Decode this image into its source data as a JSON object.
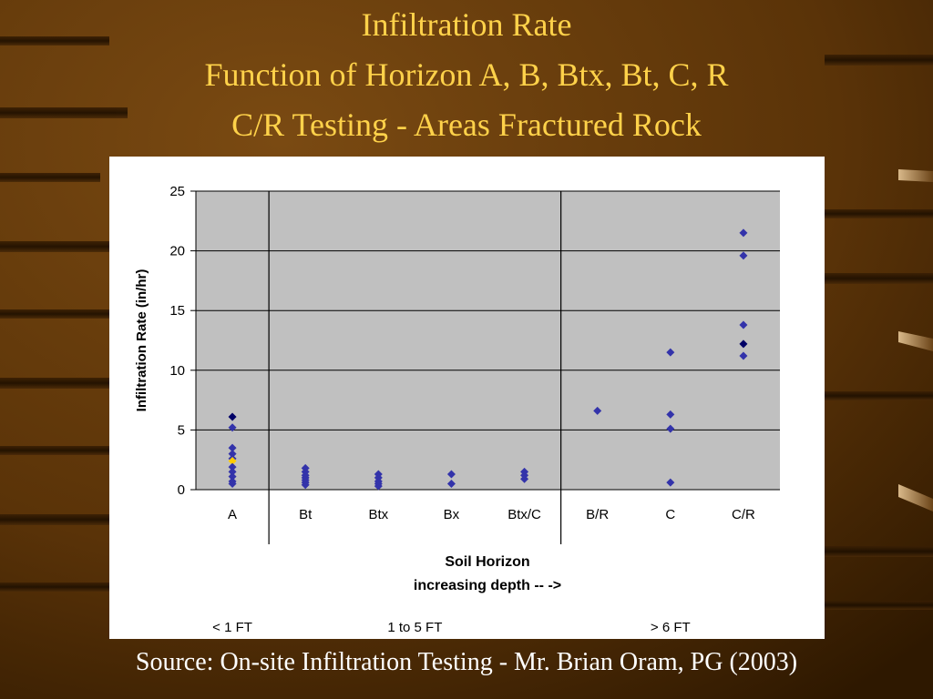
{
  "slide": {
    "title_lines": [
      "Infiltration Rate",
      "Function of Horizon A, B, Btx, Bt, C, R",
      "C/R Testing - Areas Fractured Rock"
    ],
    "source": "Source: On-site Infiltration Testing - Mr. Brian Oram, PG (2003)"
  },
  "colors": {
    "title": "#ffd24a",
    "source": "#ffffff",
    "plot_area": "#c0c0c0",
    "marker": "#3333aa",
    "marker_dark": "#000066",
    "marker_highlight": "#ffcc00"
  },
  "chart_data": {
    "type": "scatter",
    "categories": [
      "A",
      "Bt",
      "Btx",
      "Bx",
      "Btx/C",
      "B/R",
      "C",
      "C/R"
    ],
    "xlabel": "Soil Horizon",
    "xlabel_sub": "increasing depth -- ->",
    "ylabel": "Infiltration Rate (in/hr)",
    "ylim": [
      0,
      25
    ],
    "yticks": [
      "0",
      "5",
      "10",
      "15",
      "20",
      "25"
    ],
    "grid": true,
    "legend": "none",
    "depth_groups": [
      {
        "label": "< 1 FT",
        "from": 0,
        "to": 0
      },
      {
        "label": "1 to 5 FT",
        "from": 1,
        "to": 4
      },
      {
        "label": "> 6 FT",
        "from": 5,
        "to": 7
      }
    ],
    "points": [
      {
        "cat": 0,
        "y": 6.1,
        "style": "dark"
      },
      {
        "cat": 0,
        "y": 5.2
      },
      {
        "cat": 0,
        "y": 3.5
      },
      {
        "cat": 0,
        "y": 3.0
      },
      {
        "cat": 0,
        "y": 2.6
      },
      {
        "cat": 0,
        "y": 2.4,
        "style": "highlight"
      },
      {
        "cat": 0,
        "y": 1.9
      },
      {
        "cat": 0,
        "y": 1.5
      },
      {
        "cat": 0,
        "y": 1.1
      },
      {
        "cat": 0,
        "y": 0.7
      },
      {
        "cat": 0,
        "y": 0.5
      },
      {
        "cat": 1,
        "y": 1.8
      },
      {
        "cat": 1,
        "y": 1.5
      },
      {
        "cat": 1,
        "y": 1.2
      },
      {
        "cat": 1,
        "y": 1.0
      },
      {
        "cat": 1,
        "y": 0.8
      },
      {
        "cat": 1,
        "y": 0.6
      },
      {
        "cat": 1,
        "y": 0.4
      },
      {
        "cat": 2,
        "y": 1.3
      },
      {
        "cat": 2,
        "y": 1.0
      },
      {
        "cat": 2,
        "y": 0.7
      },
      {
        "cat": 2,
        "y": 0.5
      },
      {
        "cat": 2,
        "y": 0.3
      },
      {
        "cat": 3,
        "y": 1.3
      },
      {
        "cat": 3,
        "y": 0.5
      },
      {
        "cat": 4,
        "y": 1.5
      },
      {
        "cat": 4,
        "y": 1.2
      },
      {
        "cat": 4,
        "y": 0.9
      },
      {
        "cat": 5,
        "y": 6.6
      },
      {
        "cat": 6,
        "y": 11.5
      },
      {
        "cat": 6,
        "y": 6.3
      },
      {
        "cat": 6,
        "y": 5.1
      },
      {
        "cat": 6,
        "y": 0.6
      },
      {
        "cat": 7,
        "y": 21.5
      },
      {
        "cat": 7,
        "y": 19.6
      },
      {
        "cat": 7,
        "y": 13.8
      },
      {
        "cat": 7,
        "y": 12.2,
        "style": "dark"
      },
      {
        "cat": 7,
        "y": 11.2
      }
    ]
  }
}
